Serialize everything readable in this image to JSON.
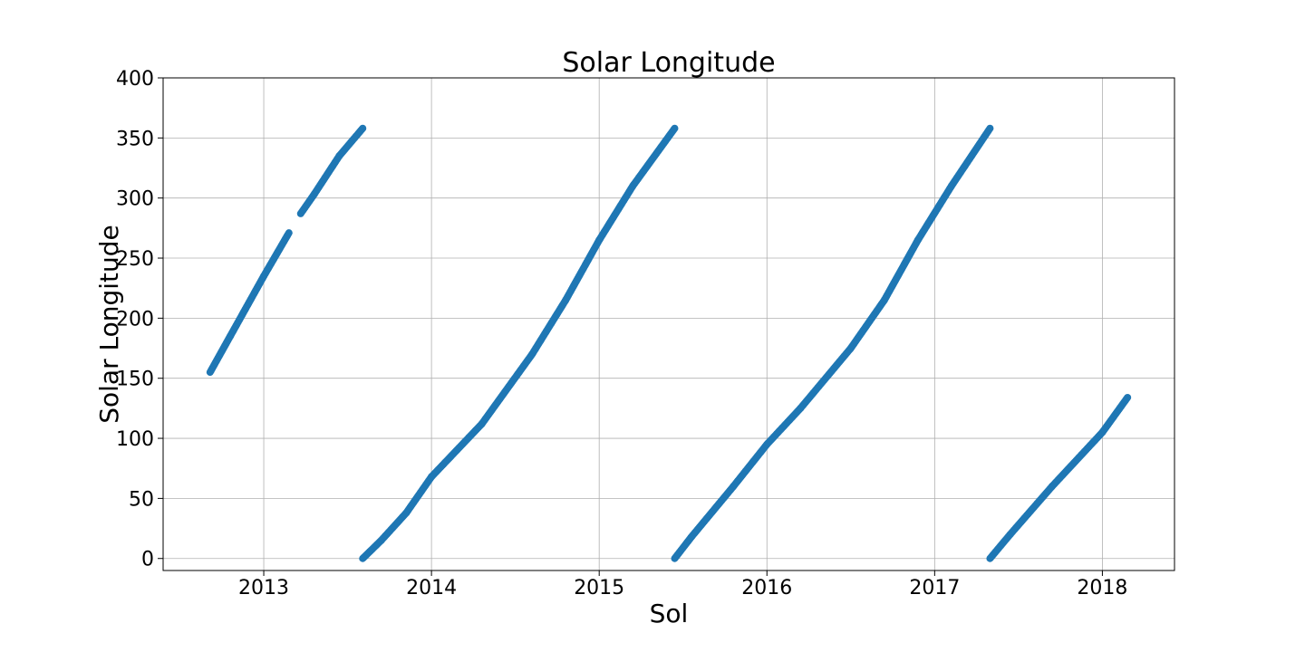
{
  "chart_data": {
    "type": "scatter",
    "title": "Solar Longitude",
    "xlabel": "Sol",
    "ylabel": "Solar Longitude",
    "xlim": [
      2012.4,
      2018.43
    ],
    "ylim": [
      -10,
      400
    ],
    "xticks": [
      2013,
      2014,
      2015,
      2016,
      2017,
      2018
    ],
    "xtick_labels": [
      "2013",
      "2014",
      "2015",
      "2016",
      "2017",
      "2018"
    ],
    "yticks": [
      0,
      50,
      100,
      150,
      200,
      250,
      300,
      350,
      400
    ],
    "ytick_labels": [
      "0",
      "50",
      "100",
      "150",
      "200",
      "250",
      "300",
      "350",
      "400"
    ],
    "grid": true,
    "legend": false,
    "series": [
      {
        "color": "#1f77b4",
        "segments": [
          {
            "x": [
              2012.68,
              2012.8,
              2013.0,
              2013.15
            ],
            "y": [
              155,
              185,
              235,
              271
            ]
          },
          {
            "x": [
              2013.22,
              2013.3,
              2013.45,
              2013.59
            ],
            "y": [
              287,
              303,
              335,
              358
            ]
          },
          {
            "x": [
              2013.59,
              2013.7,
              2013.85,
              2014.0,
              2014.3,
              2014.6,
              2014.8,
              2015.0,
              2015.2,
              2015.45
            ],
            "y": [
              0,
              15,
              38,
              68,
              112,
              170,
              215,
              265,
              310,
              358
            ]
          },
          {
            "x": [
              2015.45,
              2015.55,
              2015.8,
              2016.0,
              2016.2,
              2016.5,
              2016.7,
              2016.9,
              2017.1,
              2017.33
            ],
            "y": [
              0,
              18,
              60,
              95,
              125,
              175,
              215,
              265,
              310,
              358
            ]
          },
          {
            "x": [
              2017.33,
              2017.45,
              2017.7,
              2018.0,
              2018.15
            ],
            "y": [
              0,
              20,
              60,
              105,
              134
            ]
          }
        ]
      }
    ]
  }
}
